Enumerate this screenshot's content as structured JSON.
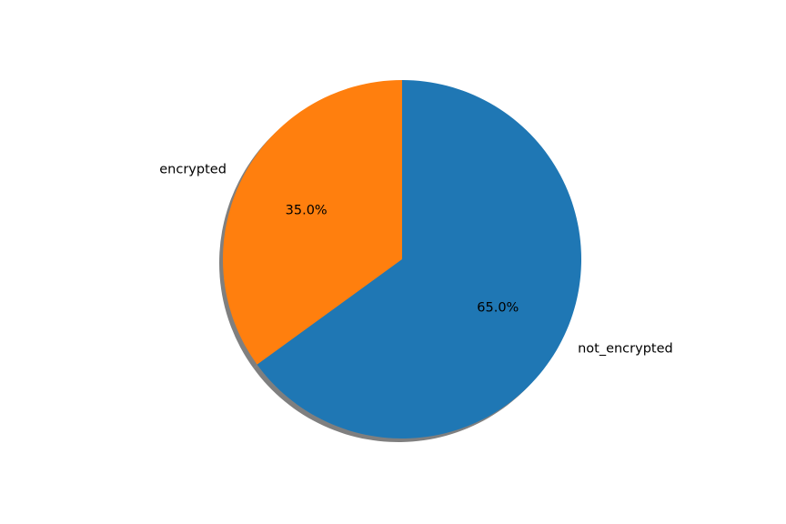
{
  "chart_data": {
    "type": "pie",
    "title": "",
    "startangle_deg": 90,
    "direction": "counterclockwise",
    "shadow": true,
    "slices": [
      {
        "label": "encrypted",
        "value": 35.0,
        "pct_text": "35.0%",
        "color": "#ff7f0e"
      },
      {
        "label": "not_encrypted",
        "value": 65.0,
        "pct_text": "65.0%",
        "color": "#1f77b4"
      }
    ]
  }
}
